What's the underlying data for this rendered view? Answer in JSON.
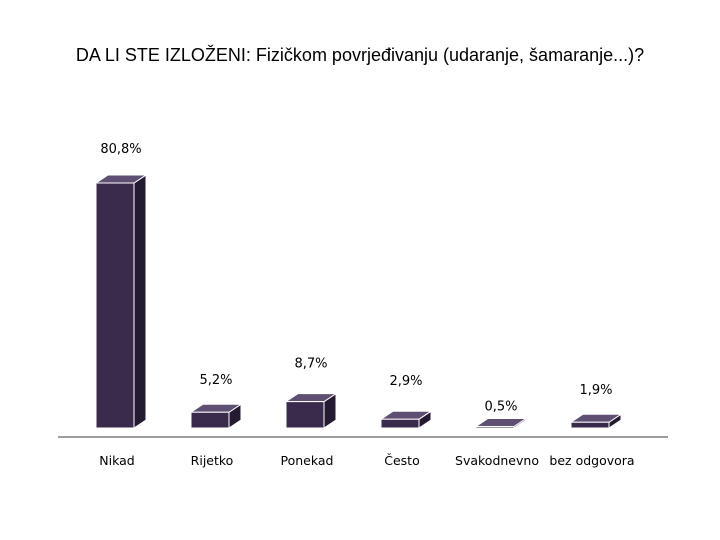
{
  "chart_data": {
    "type": "bar",
    "title": "DA LI STE IZLOŽENI: Fizičkom povrjeđivanju (udaranje, šamaranje...)?",
    "categories": [
      "Nikad",
      "Rijetko",
      "Ponekad",
      "Često",
      "Svakodnevno",
      "bez odgovora"
    ],
    "values": [
      80.8,
      5.2,
      8.7,
      2.9,
      0.5,
      1.9
    ],
    "data_labels": [
      "80,8%",
      "5,2%",
      "8,7%",
      "2,9%",
      "0,5%",
      "1,9%"
    ],
    "ylim": [
      0,
      100
    ],
    "grid": false,
    "legend": "none",
    "style": "3d-column"
  },
  "colors": {
    "bar_front": "#3a2b4c",
    "bar_top": "#5f4f72",
    "bar_side": "#241a32",
    "bar_outline": "#ffffff",
    "axis": "#7f7f7f"
  }
}
